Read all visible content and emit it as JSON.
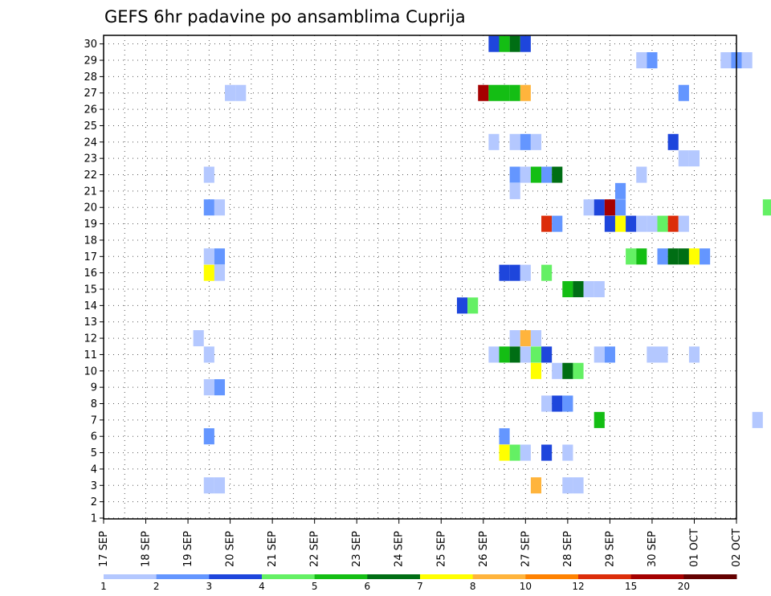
{
  "chart_data": {
    "type": "heatmap",
    "title": "GEFS 6hr padavine po ansamblima Cuprija",
    "xlabel": "",
    "ylabel": "",
    "x_tick_labels": [
      "17 SEP",
      "18 SEP",
      "19 SEP",
      "20 SEP",
      "21 SEP",
      "22 SEP",
      "23 SEP",
      "24 SEP",
      "25 SEP",
      "26 SEP",
      "27 SEP",
      "28 SEP",
      "29 SEP",
      "30 SEP",
      "01 OCT",
      "02 OCT"
    ],
    "x_range": [
      "17 SEP 00Z",
      "02 OCT 00Z"
    ],
    "time_step_hours": 6,
    "y_tick_labels": [
      "1",
      "2",
      "3",
      "4",
      "5",
      "6",
      "7",
      "8",
      "9",
      "10",
      "11",
      "12",
      "13",
      "14",
      "15",
      "16",
      "17",
      "18",
      "19",
      "20",
      "21",
      "22",
      "23",
      "24",
      "25",
      "26",
      "27",
      "28",
      "29",
      "30"
    ],
    "y_range": [
      1,
      30
    ],
    "grid": true,
    "legend_placement": "bottom",
    "color_levels": [
      {
        "color": "#b4c8ff",
        "from": "1",
        "to": "2"
      },
      {
        "color": "#6496ff",
        "from": "2",
        "to": "3"
      },
      {
        "color": "#1e46dc",
        "from": "3",
        "to": "4"
      },
      {
        "color": "#64f064",
        "from": "4",
        "to": "5"
      },
      {
        "color": "#14be14",
        "from": "5",
        "to": "6"
      },
      {
        "color": "#006e14",
        "from": "6",
        "to": "7"
      },
      {
        "color": "#ffff00",
        "from": "7",
        "to": "8"
      },
      {
        "color": "#ffb43c",
        "from": "8",
        "to": "10"
      },
      {
        "color": "#ff8200",
        "from": "10",
        "to": "12"
      },
      {
        "color": "#dc2d0a",
        "from": "12",
        "to": "15"
      },
      {
        "color": "#a50000",
        "from": "15",
        "to": "20"
      },
      {
        "color": "#640000",
        "from": "20",
        "to": ""
      }
    ],
    "legend_labels": [
      "1",
      "2",
      "3",
      "4",
      "5",
      "6",
      "7",
      "8",
      "10",
      "12",
      "15",
      "20"
    ],
    "cells": [
      {
        "member": 30,
        "time": "26 SEP 06Z",
        "value": 3.5
      },
      {
        "member": 30,
        "time": "26 SEP 12Z",
        "value": 5.5
      },
      {
        "member": 30,
        "time": "26 SEP 18Z",
        "value": 6.5
      },
      {
        "member": 30,
        "time": "27 SEP 00Z",
        "value": 3.5
      },
      {
        "member": 29,
        "time": "29 SEP 18Z",
        "value": 1.5
      },
      {
        "member": 29,
        "time": "30 SEP 00Z",
        "value": 2.5
      },
      {
        "member": 29,
        "time": "01 OCT 18Z",
        "value": 1.5
      },
      {
        "member": 29,
        "time": "02 OCT 00Z",
        "value": 2.5
      },
      {
        "member": 29,
        "time": "02 OCT 06Z",
        "value": 1.5
      },
      {
        "member": 27,
        "time": "20 SEP 00Z",
        "value": 1.5
      },
      {
        "member": 27,
        "time": "20 SEP 06Z",
        "value": 1.5
      },
      {
        "member": 27,
        "time": "26 SEP 00Z",
        "value": 16
      },
      {
        "member": 27,
        "time": "26 SEP 06Z",
        "value": 5.5
      },
      {
        "member": 27,
        "time": "26 SEP 12Z",
        "value": 5.5
      },
      {
        "member": 27,
        "time": "26 SEP 18Z",
        "value": 5.5
      },
      {
        "member": 27,
        "time": "27 SEP 00Z",
        "value": 9
      },
      {
        "member": 27,
        "time": "30 SEP 18Z",
        "value": 2.5
      },
      {
        "member": 24,
        "time": "26 SEP 06Z",
        "value": 1.5
      },
      {
        "member": 24,
        "time": "26 SEP 18Z",
        "value": 1.5
      },
      {
        "member": 24,
        "time": "27 SEP 00Z",
        "value": 2.5
      },
      {
        "member": 24,
        "time": "27 SEP 06Z",
        "value": 1.5
      },
      {
        "member": 24,
        "time": "30 SEP 12Z",
        "value": 3.5
      },
      {
        "member": 23,
        "time": "30 SEP 18Z",
        "value": 1.5
      },
      {
        "member": 23,
        "time": "01 OCT 00Z",
        "value": 1.5
      },
      {
        "member": 22,
        "time": "19 SEP 12Z",
        "value": 1.5
      },
      {
        "member": 22,
        "time": "26 SEP 18Z",
        "value": 2.5
      },
      {
        "member": 22,
        "time": "27 SEP 00Z",
        "value": 1.5
      },
      {
        "member": 22,
        "time": "27 SEP 06Z",
        "value": 5.5
      },
      {
        "member": 22,
        "time": "27 SEP 12Z",
        "value": 2.5
      },
      {
        "member": 22,
        "time": "27 SEP 18Z",
        "value": 6.5
      },
      {
        "member": 22,
        "time": "29 SEP 18Z",
        "value": 1.5
      },
      {
        "member": 21,
        "time": "26 SEP 18Z",
        "value": 1.5
      },
      {
        "member": 21,
        "time": "29 SEP 06Z",
        "value": 2.5
      },
      {
        "member": 20,
        "time": "19 SEP 12Z",
        "value": 2.5
      },
      {
        "member": 20,
        "time": "19 SEP 18Z",
        "value": 1.5
      },
      {
        "member": 20,
        "time": "28 SEP 12Z",
        "value": 1.5
      },
      {
        "member": 20,
        "time": "28 SEP 18Z",
        "value": 3.5
      },
      {
        "member": 20,
        "time": "29 SEP 00Z",
        "value": 16
      },
      {
        "member": 20,
        "time": "29 SEP 06Z",
        "value": 2.5
      },
      {
        "member": 20,
        "time": "02 OCT 18Z",
        "value": 4.5
      },
      {
        "member": 19,
        "time": "27 SEP 12Z",
        "value": 13
      },
      {
        "member": 19,
        "time": "27 SEP 18Z",
        "value": 2.5
      },
      {
        "member": 19,
        "time": "29 SEP 00Z",
        "value": 3.5
      },
      {
        "member": 19,
        "time": "29 SEP 06Z",
        "value": 7.5
      },
      {
        "member": 19,
        "time": "29 SEP 12Z",
        "value": 3.5
      },
      {
        "member": 19,
        "time": "29 SEP 18Z",
        "value": 1.5
      },
      {
        "member": 19,
        "time": "30 SEP 00Z",
        "value": 1.5
      },
      {
        "member": 19,
        "time": "30 SEP 06Z",
        "value": 4.5
      },
      {
        "member": 19,
        "time": "30 SEP 12Z",
        "value": 13
      },
      {
        "member": 19,
        "time": "30 SEP 18Z",
        "value": 1.5
      },
      {
        "member": 17,
        "time": "19 SEP 12Z",
        "value": 1.5
      },
      {
        "member": 17,
        "time": "19 SEP 18Z",
        "value": 2.5
      },
      {
        "member": 17,
        "time": "29 SEP 12Z",
        "value": 4.5
      },
      {
        "member": 17,
        "time": "29 SEP 18Z",
        "value": 5.5
      },
      {
        "member": 17,
        "time": "30 SEP 06Z",
        "value": 2.5
      },
      {
        "member": 17,
        "time": "30 SEP 12Z",
        "value": 6.5
      },
      {
        "member": 17,
        "time": "30 SEP 18Z",
        "value": 6.5
      },
      {
        "member": 17,
        "time": "01 OCT 00Z",
        "value": 7.5
      },
      {
        "member": 17,
        "time": "01 OCT 06Z",
        "value": 2.5
      },
      {
        "member": 16,
        "time": "19 SEP 12Z",
        "value": 7.5
      },
      {
        "member": 16,
        "time": "19 SEP 18Z",
        "value": 1.5
      },
      {
        "member": 16,
        "time": "26 SEP 12Z",
        "value": 3.5
      },
      {
        "member": 16,
        "time": "26 SEP 18Z",
        "value": 3.5
      },
      {
        "member": 16,
        "time": "27 SEP 00Z",
        "value": 1.5
      },
      {
        "member": 16,
        "time": "27 SEP 12Z",
        "value": 4.5
      },
      {
        "member": 15,
        "time": "28 SEP 00Z",
        "value": 5.5
      },
      {
        "member": 15,
        "time": "28 SEP 06Z",
        "value": 6.5
      },
      {
        "member": 15,
        "time": "28 SEP 12Z",
        "value": 1.5
      },
      {
        "member": 15,
        "time": "28 SEP 18Z",
        "value": 1.5
      },
      {
        "member": 14,
        "time": "25 SEP 12Z",
        "value": 3.5
      },
      {
        "member": 14,
        "time": "25 SEP 18Z",
        "value": 4.5
      },
      {
        "member": 12,
        "time": "19 SEP 06Z",
        "value": 1.5
      },
      {
        "member": 12,
        "time": "26 SEP 18Z",
        "value": 1.5
      },
      {
        "member": 12,
        "time": "27 SEP 00Z",
        "value": 9
      },
      {
        "member": 12,
        "time": "27 SEP 06Z",
        "value": 1.5
      },
      {
        "member": 11,
        "time": "19 SEP 12Z",
        "value": 1.5
      },
      {
        "member": 11,
        "time": "26 SEP 06Z",
        "value": 1.5
      },
      {
        "member": 11,
        "time": "26 SEP 12Z",
        "value": 5.5
      },
      {
        "member": 11,
        "time": "26 SEP 18Z",
        "value": 6.5
      },
      {
        "member": 11,
        "time": "27 SEP 00Z",
        "value": 1.5
      },
      {
        "member": 11,
        "time": "27 SEP 06Z",
        "value": 4.5
      },
      {
        "member": 11,
        "time": "27 SEP 12Z",
        "value": 3.5
      },
      {
        "member": 11,
        "time": "28 SEP 18Z",
        "value": 1.5
      },
      {
        "member": 11,
        "time": "29 SEP 00Z",
        "value": 2.5
      },
      {
        "member": 11,
        "time": "30 SEP 00Z",
        "value": 1.5
      },
      {
        "member": 11,
        "time": "30 SEP 06Z",
        "value": 1.5
      },
      {
        "member": 11,
        "time": "01 OCT 00Z",
        "value": 1.5
      },
      {
        "member": 10,
        "time": "27 SEP 06Z",
        "value": 7.5
      },
      {
        "member": 10,
        "time": "27 SEP 18Z",
        "value": 1.5
      },
      {
        "member": 10,
        "time": "28 SEP 00Z",
        "value": 6.5
      },
      {
        "member": 10,
        "time": "28 SEP 06Z",
        "value": 4.5
      },
      {
        "member": 9,
        "time": "19 SEP 12Z",
        "value": 1.5
      },
      {
        "member": 9,
        "time": "19 SEP 18Z",
        "value": 2.5
      },
      {
        "member": 8,
        "time": "27 SEP 12Z",
        "value": 1.5
      },
      {
        "member": 8,
        "time": "27 SEP 18Z",
        "value": 3.5
      },
      {
        "member": 8,
        "time": "28 SEP 00Z",
        "value": 2.5
      },
      {
        "member": 7,
        "time": "28 SEP 18Z",
        "value": 5.5
      },
      {
        "member": 7,
        "time": "02 OCT 12Z",
        "value": 1.5
      },
      {
        "member": 6,
        "time": "19 SEP 12Z",
        "value": 2.5
      },
      {
        "member": 6,
        "time": "26 SEP 12Z",
        "value": 2.5
      },
      {
        "member": 5,
        "time": "26 SEP 12Z",
        "value": 7.5
      },
      {
        "member": 5,
        "time": "26 SEP 18Z",
        "value": 4.5
      },
      {
        "member": 5,
        "time": "27 SEP 00Z",
        "value": 1.5
      },
      {
        "member": 5,
        "time": "27 SEP 12Z",
        "value": 3.5
      },
      {
        "member": 5,
        "time": "28 SEP 00Z",
        "value": 1.5
      },
      {
        "member": 3,
        "time": "19 SEP 12Z",
        "value": 1.5
      },
      {
        "member": 3,
        "time": "19 SEP 18Z",
        "value": 1.5
      },
      {
        "member": 3,
        "time": "27 SEP 06Z",
        "value": 9
      },
      {
        "member": 3,
        "time": "28 SEP 00Z",
        "value": 1.5
      },
      {
        "member": 3,
        "time": "28 SEP 06Z",
        "value": 1.5
      }
    ]
  }
}
